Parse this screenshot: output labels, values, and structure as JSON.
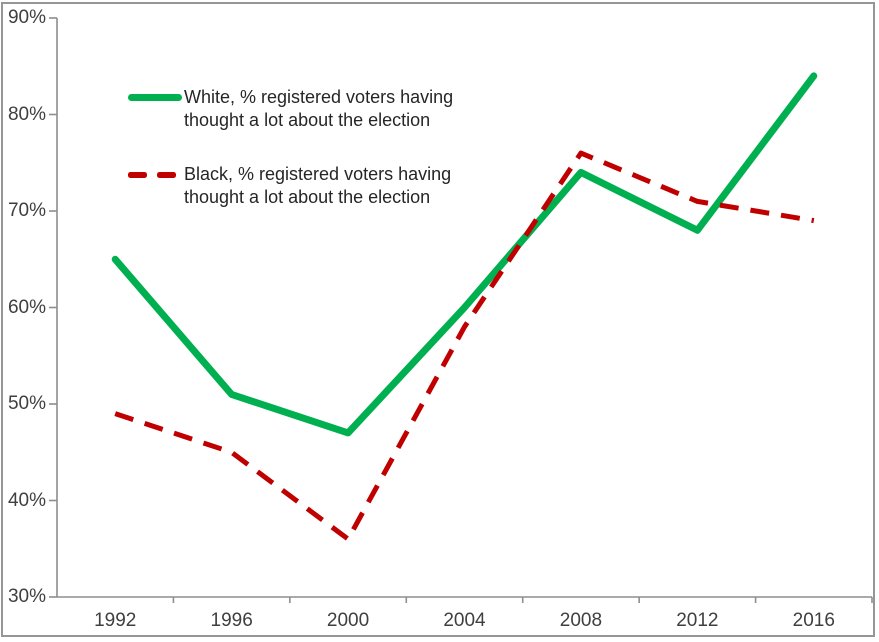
{
  "chart_data": {
    "type": "line",
    "title": "",
    "categories": [
      "1992",
      "1996",
      "2000",
      "2004",
      "2008",
      "2012",
      "2016"
    ],
    "series": [
      {
        "key": "white",
        "name": "White, % registered voters having thought a lot about the election",
        "color": "#00B050",
        "line_style": "solid",
        "values": [
          65,
          51,
          47,
          60,
          74,
          68,
          84
        ]
      },
      {
        "key": "black",
        "name": "Black, % registered voters having thought a lot about the election",
        "color": "#C00000",
        "line_style": "dashed",
        "values": [
          49,
          45,
          36,
          58,
          76,
          71,
          69
        ]
      }
    ],
    "ylim": [
      30,
      90
    ],
    "y_tick_step": 10,
    "y_tick_labels": [
      "30%",
      "40%",
      "50%",
      "60%",
      "70%",
      "80%",
      "90%"
    ],
    "xlabel": "",
    "ylabel": "",
    "grid": false,
    "legend_position": "inside-top-left"
  },
  "legend": {
    "items": [
      {
        "line1": "White, % registered voters having",
        "line2": "thought a lot about the election"
      },
      {
        "line1": "Black, % registered voters having",
        "line2": "thought a lot about the election"
      }
    ]
  },
  "colors": {
    "white_series": "#00B050",
    "black_series": "#C00000",
    "axis": "#8e8e8e",
    "axis_label_text": "#3f3f3f",
    "legend_text": "#262626",
    "chart_border": "#969696",
    "background": "#ffffff"
  }
}
